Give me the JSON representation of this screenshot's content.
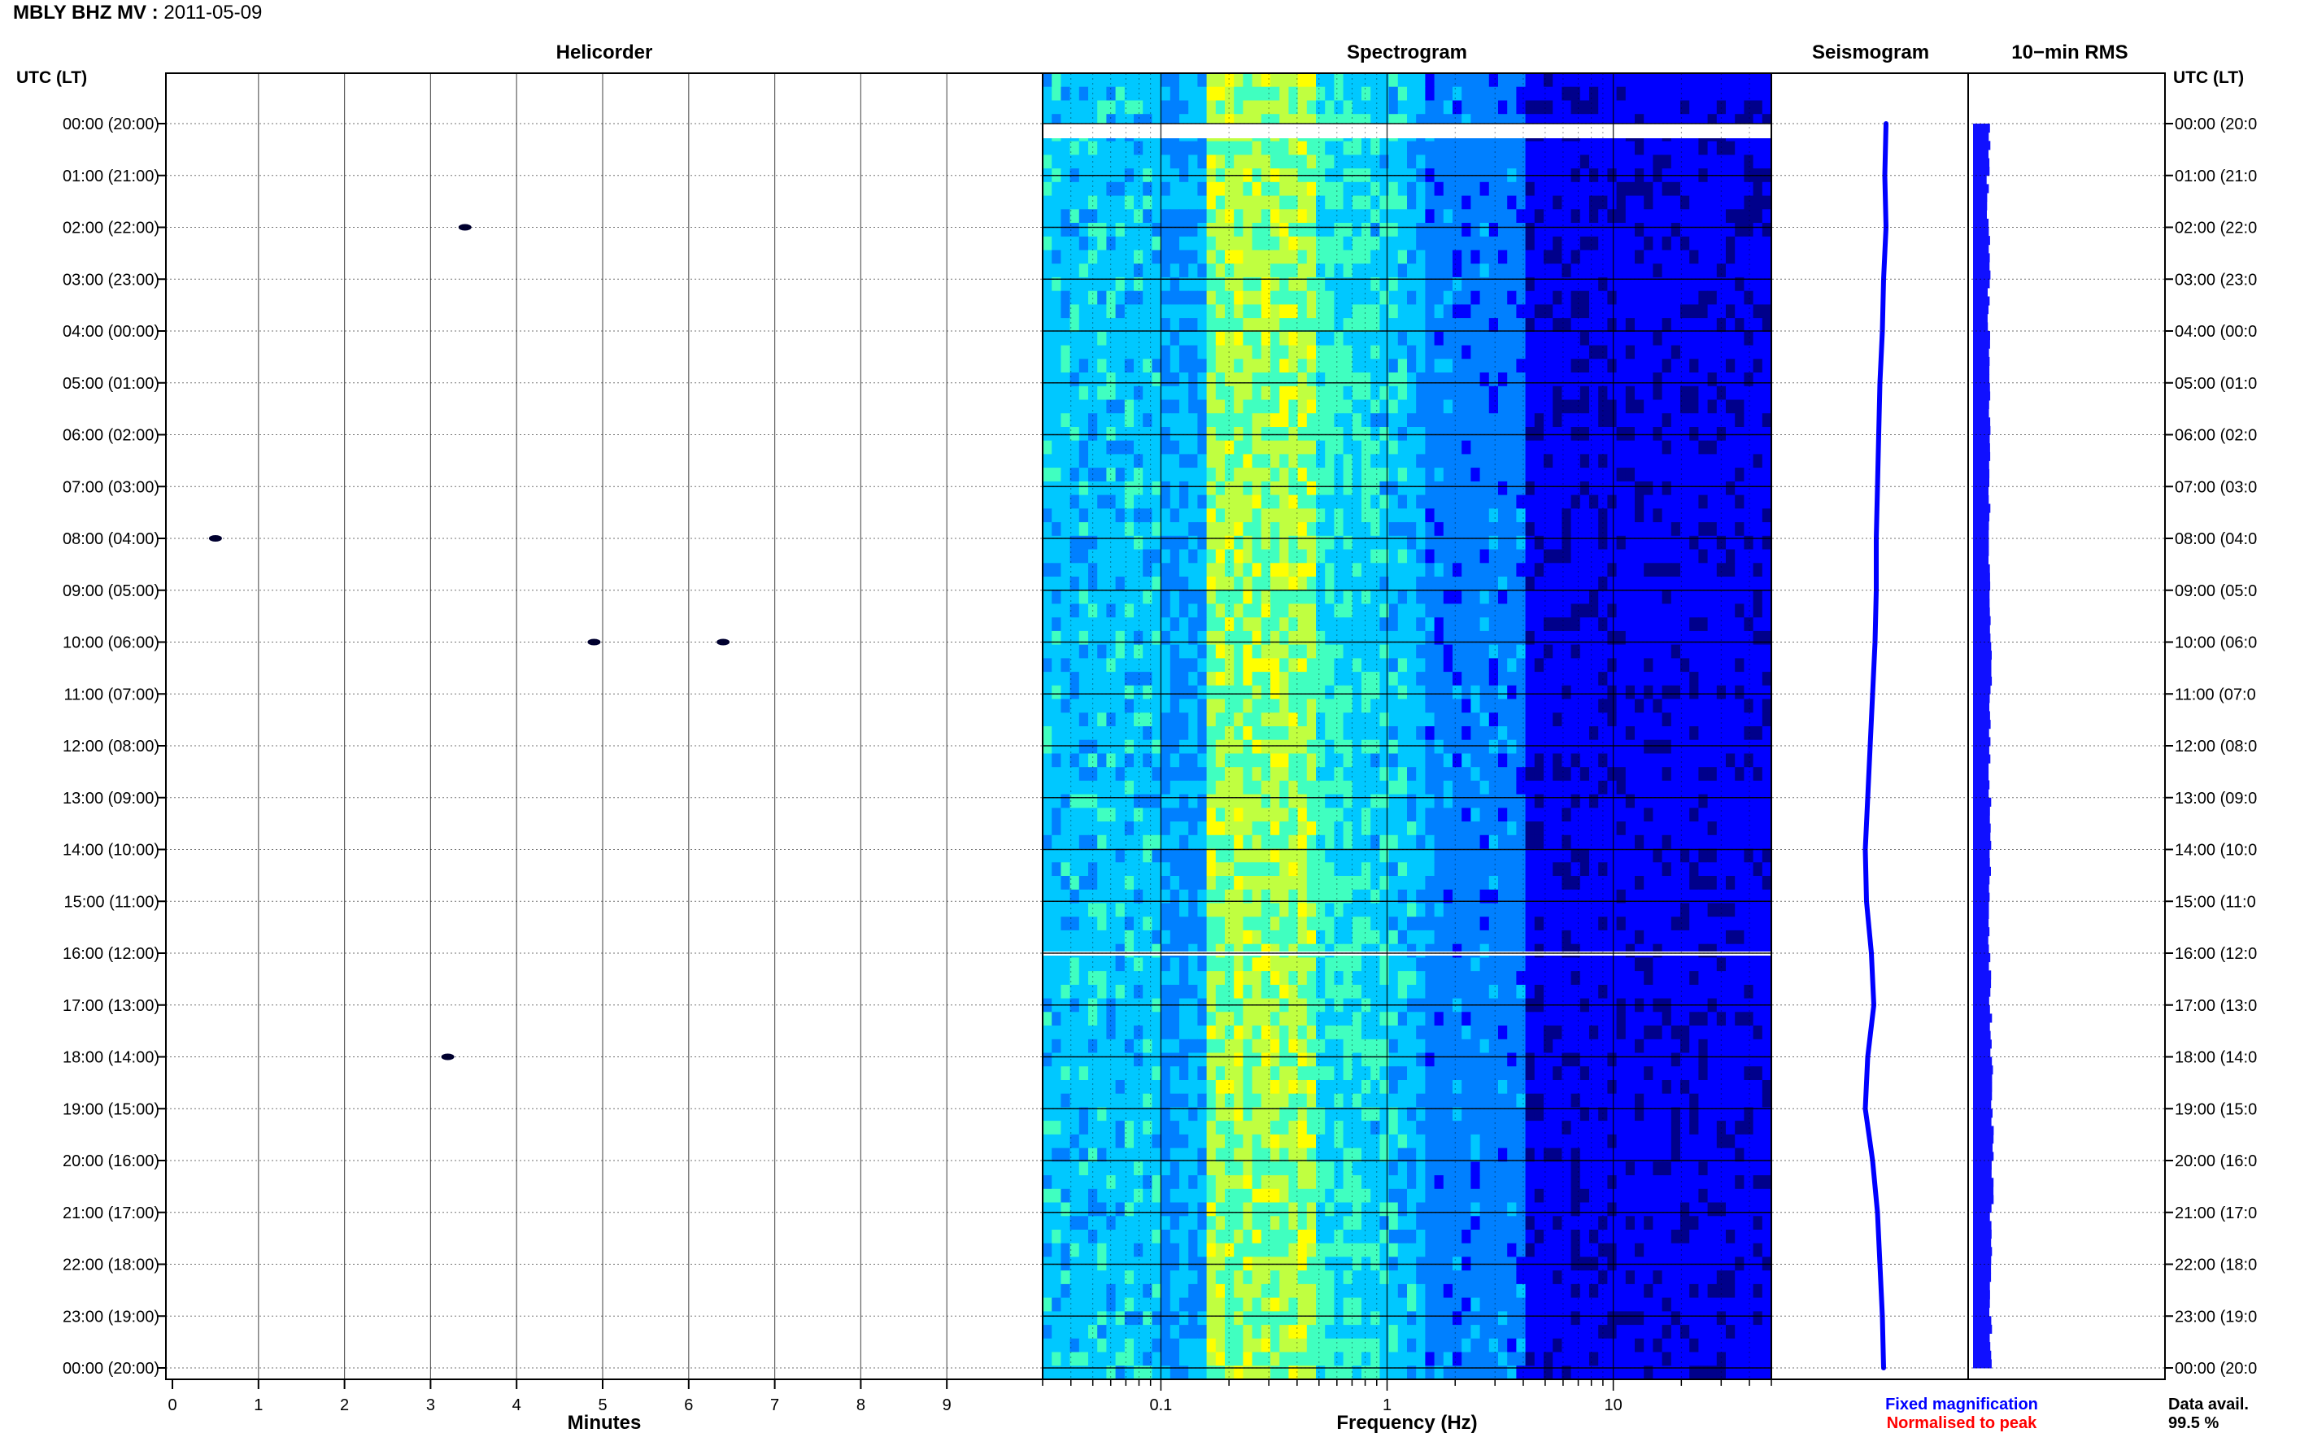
{
  "header": {
    "station": "MBLY BHZ MV :",
    "date": "2011-05-09"
  },
  "panels": {
    "helicorder": "Helicorder",
    "spectrogram": "Spectrogram",
    "seismogram": "Seismogram",
    "rms": "10−min RMS"
  },
  "axis": {
    "left_label": "UTC (LT)",
    "right_label": "UTC (LT)",
    "minutes_label": "Minutes",
    "frequency_label": "Frequency (Hz)",
    "time_labels": [
      "00:00 (20:00)",
      "01:00 (21:00)",
      "02:00 (22:00)",
      "03:00 (23:00)",
      "04:00 (00:00)",
      "05:00 (01:00)",
      "06:00 (02:00)",
      "07:00 (03:00)",
      "08:00 (04:00)",
      "09:00 (05:00)",
      "10:00 (06:00)",
      "11:00 (07:00)",
      "12:00 (08:00)",
      "13:00 (09:00)",
      "14:00 (10:00)",
      "15:00 (11:00)",
      "16:00 (12:00)",
      "17:00 (13:00)",
      "18:00 (14:00)",
      "19:00 (15:00)",
      "20:00 (16:00)",
      "21:00 (17:00)",
      "22:00 (18:00)",
      "23:00 (19:00)",
      "00:00 (20:00)"
    ],
    "right_time_labels": [
      "00:00 (20:0",
      "01:00 (21:0",
      "02:00 (22:0",
      "03:00 (23:0",
      "04:00 (00:0",
      "05:00 (01:0",
      "06:00 (02:0",
      "07:00 (03:0",
      "08:00 (04:0",
      "09:00 (05:0",
      "10:00 (06:0",
      "11:00 (07:0",
      "12:00 (08:0",
      "13:00 (09:0",
      "14:00 (10:0",
      "15:00 (11:0",
      "16:00 (12:0",
      "17:00 (13:0",
      "18:00 (14:0",
      "19:00 (15:0",
      "20:00 (16:0",
      "21:00 (17:0",
      "22:00 (18:0",
      "23:00 (19:0",
      "00:00 (20:0"
    ],
    "minute_ticks": [
      "0",
      "1",
      "2",
      "3",
      "4",
      "5",
      "6",
      "7",
      "8",
      "9"
    ],
    "frequency_ticks": [
      "0.1",
      "1",
      "10"
    ]
  },
  "legend": {
    "fixed": "Fixed magnification",
    "normalised": "Normalised to peak",
    "fixed_color": "#0000ff",
    "normalised_color": "#ff0000"
  },
  "availability": {
    "label": "Data avail.",
    "value": "99.5 %"
  },
  "chart_data": {
    "type": "heatmap",
    "hours": 24,
    "helicorder": {
      "x_range_minutes": [
        0,
        10
      ],
      "traces_per_hour": 6,
      "trace_colors": [
        "#000000",
        "#c00000",
        "#0000c0",
        "#008000"
      ],
      "events": [
        {
          "hour": 2,
          "minute": 3.4
        },
        {
          "hour": 10,
          "minute": 4.9
        },
        {
          "hour": 10,
          "minute": 6.4
        },
        {
          "hour": 18,
          "minute": 3.2
        },
        {
          "hour": 8,
          "minute": 0.5
        }
      ],
      "gaps": [
        {
          "hour": 0,
          "minute_start": 0,
          "minute_end": 10
        },
        {
          "hour": 16,
          "minute_start": 0,
          "minute_end": 10
        }
      ]
    },
    "spectrogram": {
      "x_scale": "log",
      "x_range_hz": [
        0.03,
        50
      ],
      "colormap": [
        "#00008b",
        "#0000ff",
        "#0080ff",
        "#00c8ff",
        "#40ffc0",
        "#c0ff40",
        "#ffff00"
      ]
    },
    "seismogram": {
      "offsets": [
        0.3,
        0.25,
        0.3,
        0.2,
        0.15,
        0.05,
        0,
        -0.05,
        -0.1,
        -0.1,
        -0.15,
        -0.25,
        -0.35,
        -0.45,
        -0.55,
        -0.5,
        -0.3,
        -0.2,
        -0.45,
        -0.55,
        -0.25,
        -0.05,
        0.05,
        0.15,
        0.2
      ]
    },
    "rms": {
      "values": [
        1.0,
        0.9,
        1.0,
        0.95,
        1.0,
        1.05,
        1.05,
        1.0,
        1.0,
        1.05,
        1.1,
        1.05,
        1.0,
        1.05,
        1.05,
        1.0,
        1.05,
        1.1,
        1.15,
        1.2,
        1.2,
        1.1,
        1.05,
        1.1
      ]
    }
  }
}
